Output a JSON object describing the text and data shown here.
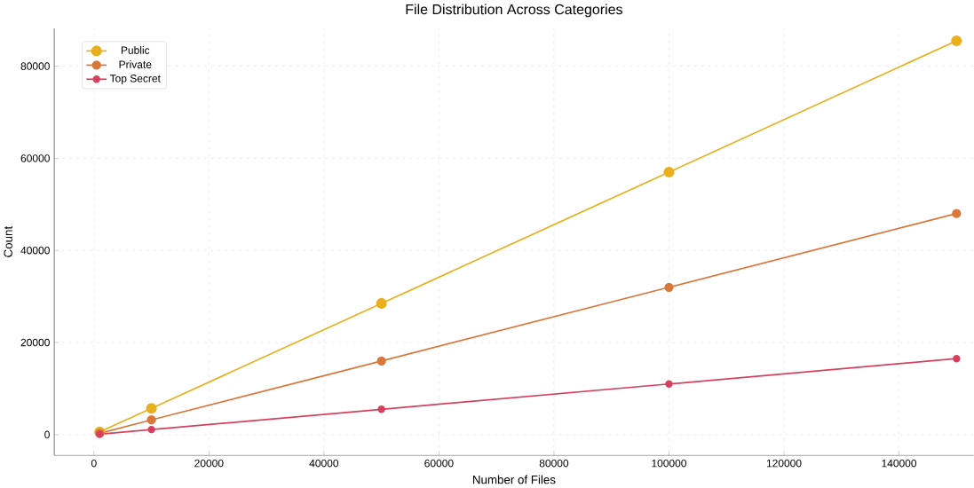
{
  "chart_data": {
    "type": "line",
    "title": "File Distribution Across Categories",
    "xlabel": "Number of Files",
    "ylabel": "Count",
    "x": [
      1000,
      10000,
      50000,
      100000,
      150000
    ],
    "series": [
      {
        "name": "Public",
        "color": "#e8b01c",
        "values": [
          600,
          5700,
          28500,
          57000,
          85500
        ]
      },
      {
        "name": "Private",
        "color": "#d9773a",
        "values": [
          300,
          3200,
          16000,
          32000,
          48000
        ]
      },
      {
        "name": "Top Secret",
        "color": "#d6405f",
        "values": [
          100,
          1100,
          5500,
          11000,
          16500
        ]
      }
    ],
    "xlim": [
      -6900,
      153000
    ],
    "ylim": [
      -4500,
      88200
    ],
    "xticks": [
      0,
      20000,
      40000,
      60000,
      80000,
      100000,
      120000,
      140000
    ],
    "yticks": [
      0,
      20000,
      40000,
      60000,
      80000
    ],
    "grid": true,
    "legend": "top left",
    "marker": "circle",
    "line_style": "solid"
  }
}
